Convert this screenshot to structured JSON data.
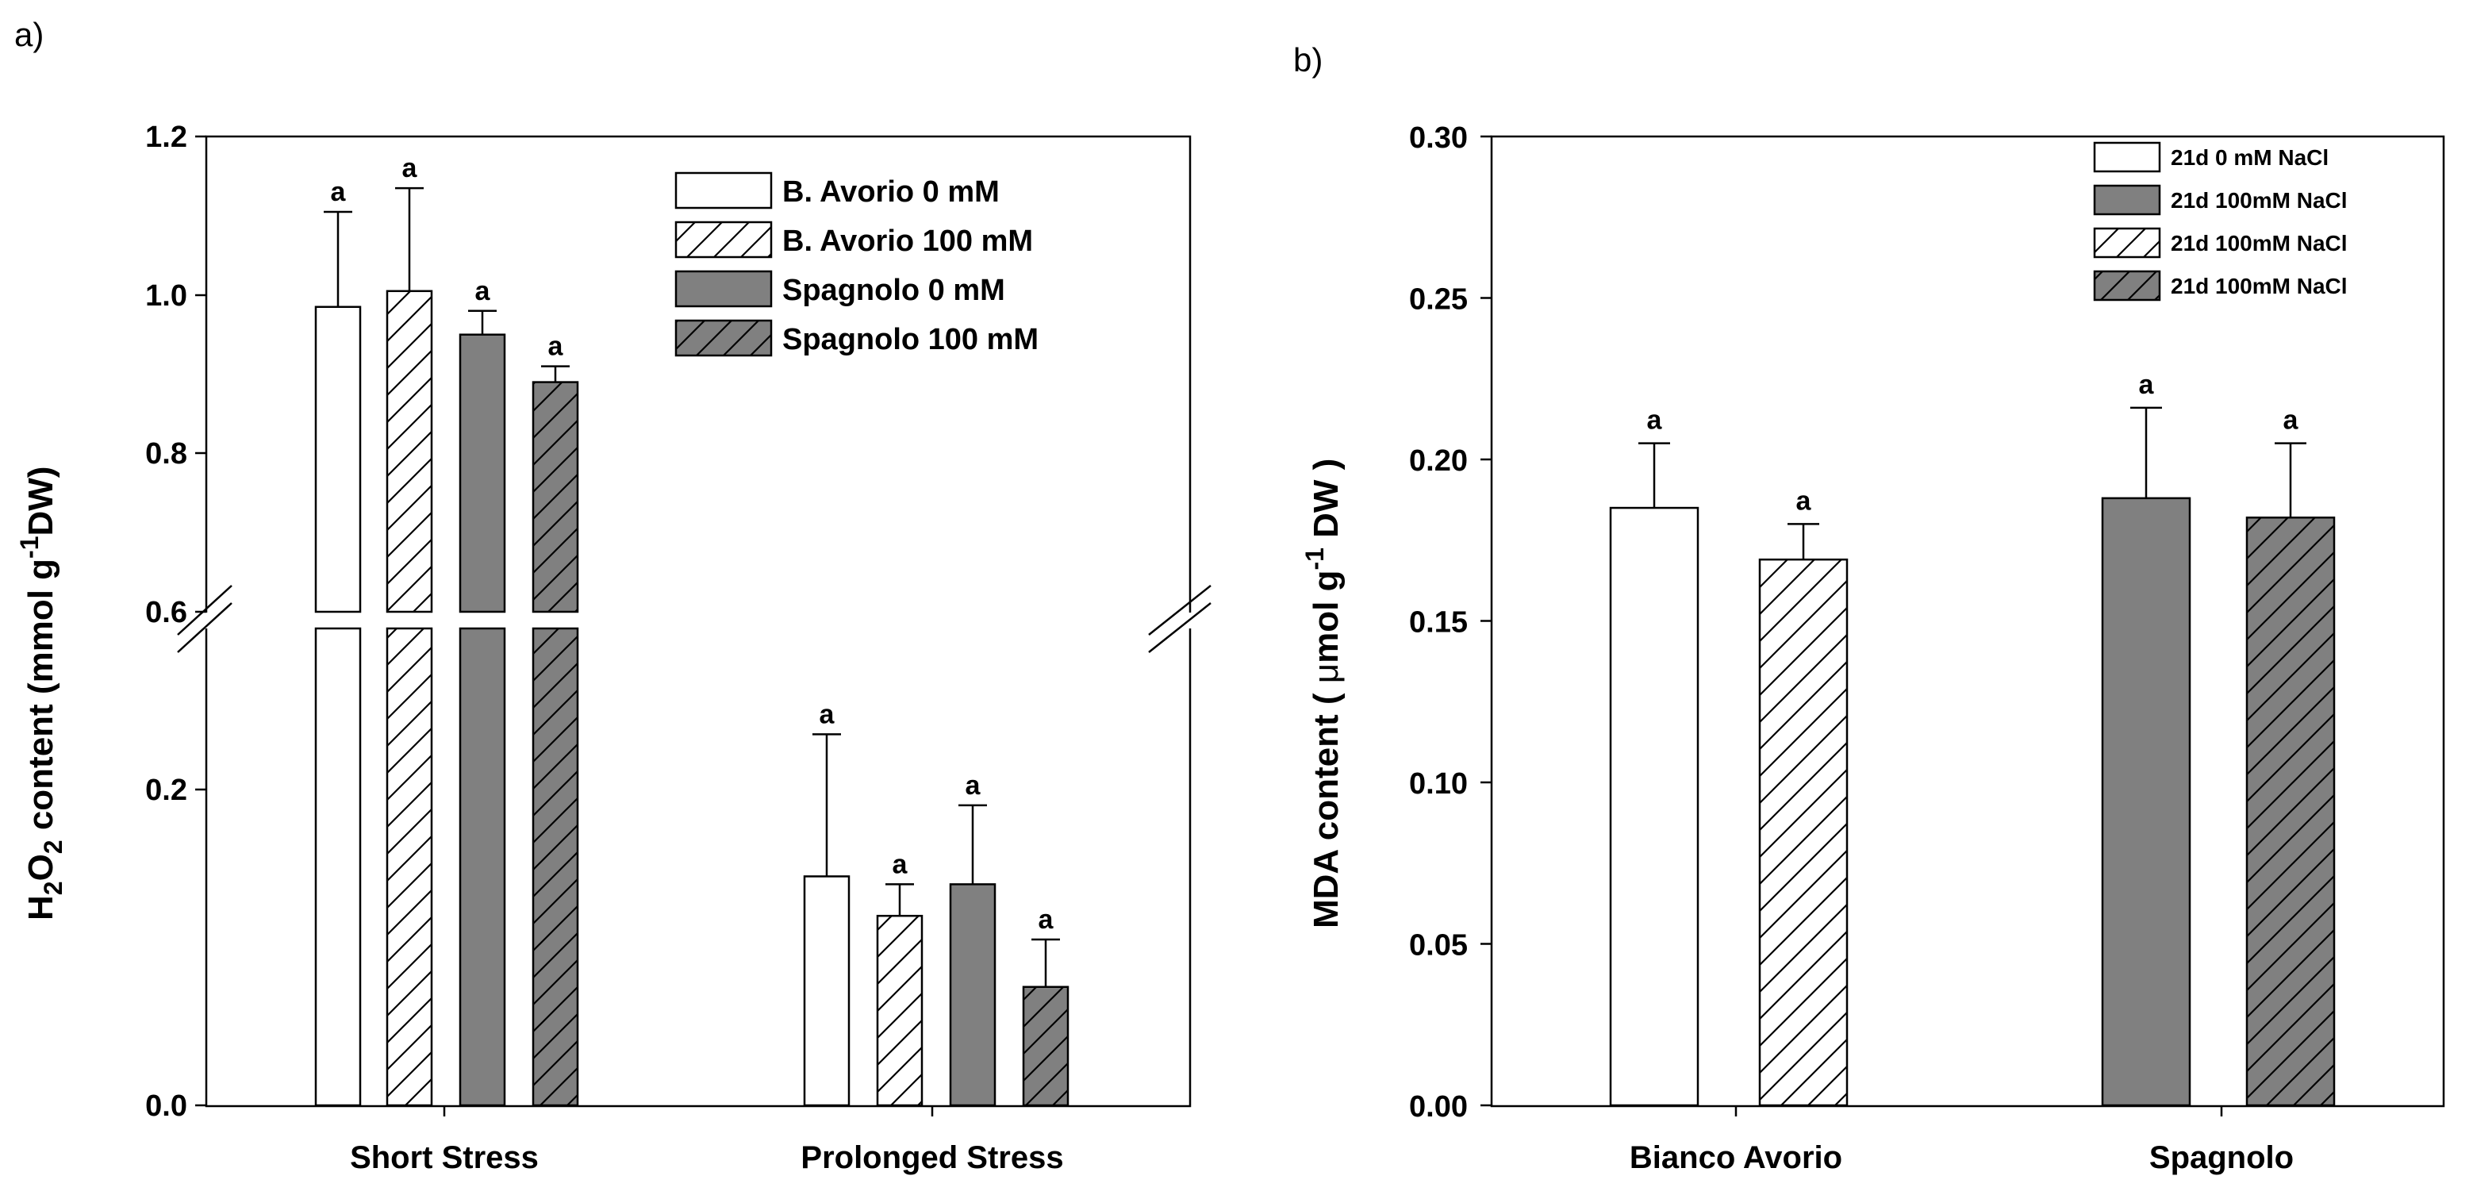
{
  "chart_data": [
    {
      "type": "bar",
      "panel": "a)",
      "ylabel": {
        "prefix": "H",
        "sub1": "2",
        "mid": "O",
        "sub2": "2",
        "suffix": " content (mmol g",
        "sup": "-1",
        "end": "DW)"
      },
      "categories": [
        "Short Stress",
        "Prolonged Stress"
      ],
      "broken_axis": {
        "lower": [
          0,
          0.28
        ],
        "upper": [
          0.6,
          1.2
        ]
      },
      "yticks_lower": [
        "0.0",
        "0.2"
      ],
      "yticks_upper": [
        "0.6",
        "0.8",
        "1.0",
        "1.2"
      ],
      "legend": [
        "B. Avorio 0 mM",
        "B. Avorio 100 mM",
        "Spagnolo 0 mM",
        "Spagnolo 100 mM"
      ],
      "series": [
        {
          "name": "B. Avorio 0 mM",
          "fill": "#ffffff",
          "hatch": false,
          "values": [
            0.985,
            0.145
          ],
          "errors": [
            0.12,
            0.09
          ],
          "sig": [
            "a",
            "a"
          ]
        },
        {
          "name": "B. Avorio 100 mM",
          "fill": "#ffffff",
          "hatch": true,
          "values": [
            1.005,
            0.12
          ],
          "errors": [
            0.13,
            0.02
          ],
          "sig": [
            "a",
            "a"
          ]
        },
        {
          "name": "Spagnolo 0 mM",
          "fill": "#808080",
          "hatch": false,
          "values": [
            0.95,
            0.14
          ],
          "errors": [
            0.03,
            0.05
          ],
          "sig": [
            "a",
            "a"
          ]
        },
        {
          "name": "Spagnolo 100 mM",
          "fill": "#808080",
          "hatch": true,
          "values": [
            0.89,
            0.075
          ],
          "errors": [
            0.02,
            0.03
          ],
          "sig": [
            "a",
            "a"
          ]
        }
      ]
    },
    {
      "type": "bar",
      "panel": "b)",
      "ylabel": {
        "prefix": "MDA content ( ",
        "mu": "μ",
        "mid": "mol g",
        "sup": "-1",
        "end": " DW )"
      },
      "categories": [
        "Bianco Avorio",
        "Spagnolo"
      ],
      "ylim": [
        0,
        0.3
      ],
      "yticks": [
        "0.00",
        "0.05",
        "0.10",
        "0.15",
        "0.20",
        "0.25",
        "0.30"
      ],
      "legend": [
        "21d 0 mM NaCl",
        "21d 100mM NaCl",
        "21d 100mM NaCl",
        "21d 100mM NaCl"
      ],
      "legend_styles": [
        {
          "fill": "#ffffff",
          "hatch": false
        },
        {
          "fill": "#808080",
          "hatch": false
        },
        {
          "fill": "#ffffff",
          "hatch": true
        },
        {
          "fill": "#808080",
          "hatch": true
        }
      ],
      "bars": [
        {
          "category": "Bianco Avorio",
          "fill": "#ffffff",
          "hatch": false,
          "value": 0.185,
          "error": 0.02,
          "sig": "a"
        },
        {
          "category": "Bianco Avorio",
          "fill": "#ffffff",
          "hatch": true,
          "value": 0.169,
          "error": 0.011,
          "sig": "a"
        },
        {
          "category": "Spagnolo",
          "fill": "#808080",
          "hatch": false,
          "value": 0.188,
          "error": 0.028,
          "sig": "a"
        },
        {
          "category": "Spagnolo",
          "fill": "#808080",
          "hatch": true,
          "value": 0.182,
          "error": 0.023,
          "sig": "a"
        }
      ]
    }
  ]
}
